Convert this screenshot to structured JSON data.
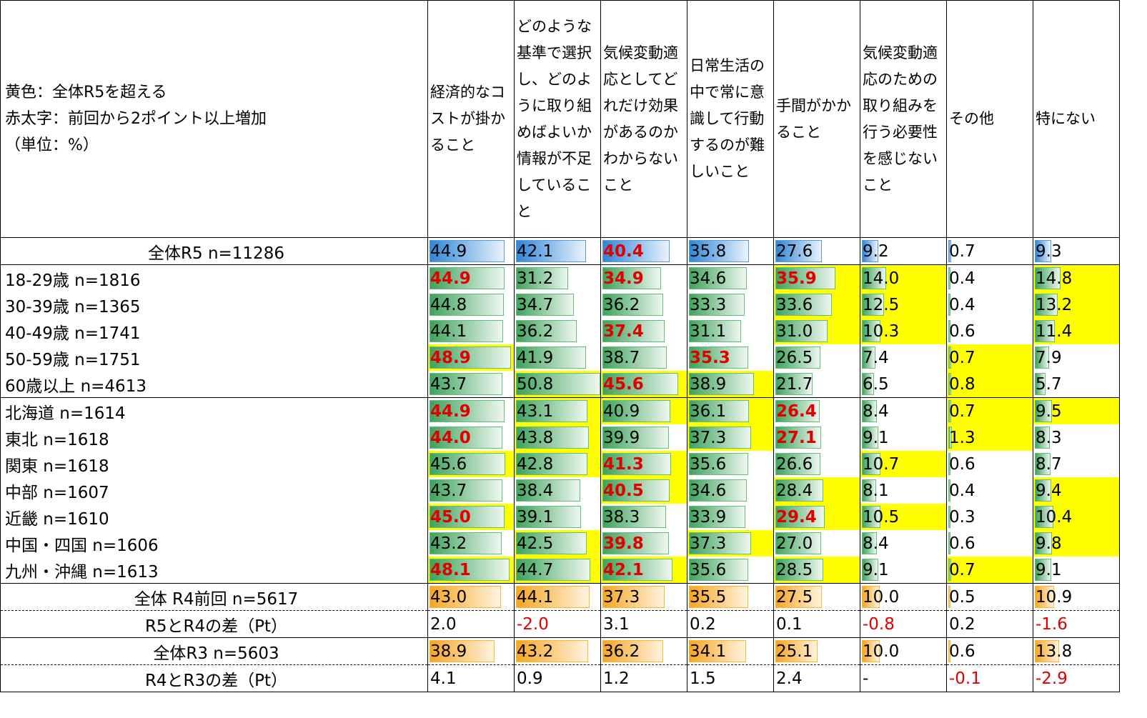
{
  "header": {
    "note": [
      "黄色：全体R5を超える",
      "赤太字：前回から2ポイント以上増加",
      "（単位：%）"
    ],
    "columns": [
      "経済的なコストが掛かること",
      "どのような基準で選択し、どのように取り組めばよいか情報が不足していること",
      "気候変動適応としてどれだけ効果があるのかわからないこと",
      "日常生活の中で常に意識して行動するのが難しいこと",
      "手間がかかること",
      "気候変動適応のための取り組みを行う必要性を感じないこと",
      "その他",
      "特にない"
    ]
  },
  "table": {
    "rows": [
      {
        "label": "全体R5 n=11286",
        "cells": [
          "44.9",
          "42.1",
          "40.4",
          "35.8",
          "27.6",
          "9.2",
          "0.7",
          "9.3"
        ],
        "bar": "blue",
        "red": [
          2
        ],
        "bold": true,
        "yellow": []
      },
      {
        "label": "18-29歳 n=1816",
        "cells": [
          "44.9",
          "31.2",
          "34.9",
          "34.6",
          "35.9",
          "14.0",
          "0.4",
          "14.8"
        ],
        "bar": "green",
        "red": [
          0,
          2,
          4
        ],
        "bold": true,
        "yellow": [
          4,
          5,
          7
        ]
      },
      {
        "label": "30-39歳 n=1365",
        "cells": [
          "44.8",
          "34.7",
          "36.2",
          "33.3",
          "33.6",
          "12.5",
          "0.4",
          "13.2"
        ],
        "bar": "green",
        "red": [],
        "bold": true,
        "yellow": [
          4,
          5,
          7
        ]
      },
      {
        "label": "40-49歳 n=1741",
        "cells": [
          "44.1",
          "36.2",
          "37.4",
          "31.1",
          "31.0",
          "10.3",
          "0.6",
          "11.4"
        ],
        "bar": "green",
        "red": [
          2
        ],
        "bold": true,
        "yellow": [
          4,
          5,
          7
        ]
      },
      {
        "label": "50-59歳 n=1751",
        "cells": [
          "48.9",
          "41.9",
          "38.7",
          "35.3",
          "26.5",
          "7.4",
          "0.7",
          "7.9"
        ],
        "bar": "green",
        "red": [
          0,
          3
        ],
        "bold": true,
        "yellow": [
          0,
          6
        ]
      },
      {
        "label": "60歳以上 n=4613",
        "cells": [
          "43.7",
          "50.8",
          "45.6",
          "38.9",
          "21.7",
          "6.5",
          "0.8",
          "5.7"
        ],
        "bar": "green",
        "red": [
          2
        ],
        "bold": true,
        "yellow": [
          1,
          2,
          3,
          6
        ]
      },
      {
        "label": "北海道 n=1614",
        "cells": [
          "44.9",
          "43.1",
          "40.9",
          "36.1",
          "26.4",
          "8.4",
          "0.7",
          "9.5"
        ],
        "bar": "green",
        "red": [
          0,
          4
        ],
        "bold": true,
        "yellow": [
          1,
          2,
          3,
          6,
          7
        ]
      },
      {
        "label": "東北 n=1618",
        "cells": [
          "44.0",
          "43.8",
          "39.9",
          "37.3",
          "27.1",
          "9.1",
          "1.3",
          "8.3"
        ],
        "bar": "green",
        "red": [
          0,
          4
        ],
        "bold": true,
        "yellow": [
          1,
          3,
          6
        ]
      },
      {
        "label": "関東 n=1618",
        "cells": [
          "45.6",
          "42.8",
          "41.3",
          "35.6",
          "26.6",
          "10.7",
          "0.6",
          "8.7"
        ],
        "bar": "green",
        "red": [
          2
        ],
        "bold": true,
        "yellow": [
          0,
          1,
          2,
          5
        ]
      },
      {
        "label": "中部 n=1607",
        "cells": [
          "43.7",
          "38.4",
          "40.5",
          "34.6",
          "28.4",
          "8.1",
          "0.4",
          "9.4"
        ],
        "bar": "green",
        "red": [
          2
        ],
        "bold": true,
        "yellow": [
          2,
          4,
          7
        ]
      },
      {
        "label": "近畿 n=1610",
        "cells": [
          "45.0",
          "39.1",
          "38.3",
          "33.9",
          "29.4",
          "10.5",
          "0.3",
          "10.4"
        ],
        "bar": "green",
        "red": [
          0,
          4
        ],
        "bold": true,
        "yellow": [
          0,
          4,
          5,
          7
        ]
      },
      {
        "label": "中国・四国 n=1606",
        "cells": [
          "43.2",
          "42.5",
          "39.8",
          "37.3",
          "27.0",
          "8.4",
          "0.6",
          "9.8"
        ],
        "bar": "green",
        "red": [
          2
        ],
        "bold": true,
        "yellow": [
          1,
          3,
          7
        ]
      },
      {
        "label": "九州・沖縄 n=1613",
        "cells": [
          "48.1",
          "44.7",
          "42.1",
          "35.6",
          "28.5",
          "9.1",
          "0.7",
          "9.1"
        ],
        "bar": "green",
        "red": [
          0,
          2
        ],
        "bold": true,
        "yellow": [
          0,
          1,
          2,
          4,
          6
        ]
      },
      {
        "label": "全体 R4前回 n=5617",
        "cells": [
          "43.0",
          "44.1",
          "37.3",
          "35.5",
          "27.5",
          "10.0",
          "0.5",
          "10.9"
        ],
        "bar": "orange",
        "red": [],
        "bold": false,
        "yellow": []
      },
      {
        "label": "R5とR4の差（Pt）",
        "cells": [
          "2.0",
          "-2.0",
          "3.1",
          "0.2",
          "0.1",
          "-0.8",
          "0.2",
          "-1.6"
        ],
        "bar": null,
        "red": [
          1,
          5,
          7
        ],
        "bold": false,
        "yellow": []
      },
      {
        "label": "全体R3 n=5603",
        "cells": [
          "38.9",
          "43.2",
          "36.2",
          "34.1",
          "25.1",
          "10.0",
          "0.6",
          "13.8"
        ],
        "bar": "orange",
        "red": [],
        "bold": false,
        "yellow": []
      },
      {
        "label": "R4とR3の差（Pt）",
        "cells": [
          "4.1",
          "0.9",
          "1.2",
          "1.5",
          "2.4",
          "-",
          "-0.1",
          "-2.9"
        ],
        "bar": null,
        "red": [
          6,
          7
        ],
        "bold": false,
        "yellow": []
      }
    ]
  }
}
